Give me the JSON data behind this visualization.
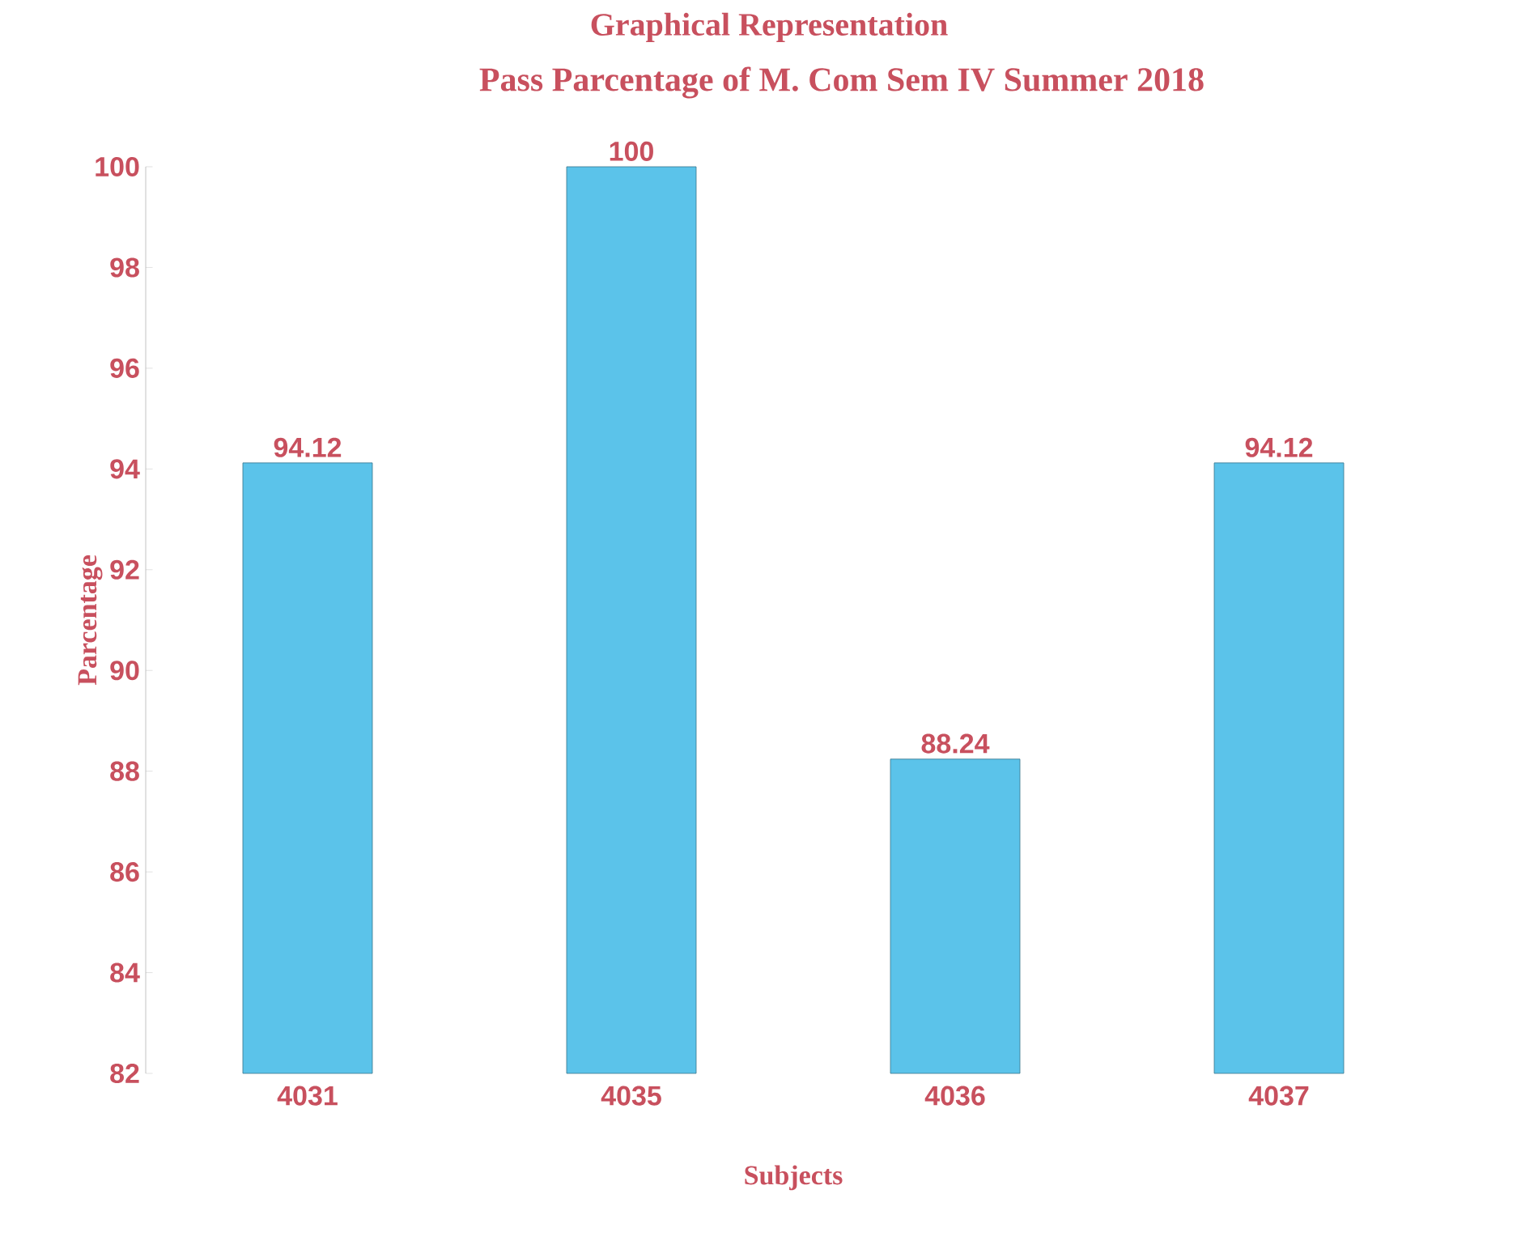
{
  "chart_data": {
    "type": "bar",
    "title": "Graphical Representation",
    "subtitle": "Pass Parcentage of M. Com Sem IV Summer 2018",
    "xlabel": "Subjects",
    "ylabel": "Parcentage",
    "categories": [
      "4031",
      "4035",
      "4036",
      "4037"
    ],
    "values": [
      94.12,
      100,
      88.24,
      94.12
    ],
    "color": "#5bc3ea",
    "ylim": [
      82,
      100
    ],
    "yticks": [
      82,
      84,
      86,
      88,
      90,
      92,
      94,
      96,
      98,
      100
    ],
    "grid": false,
    "data_labels": true
  }
}
